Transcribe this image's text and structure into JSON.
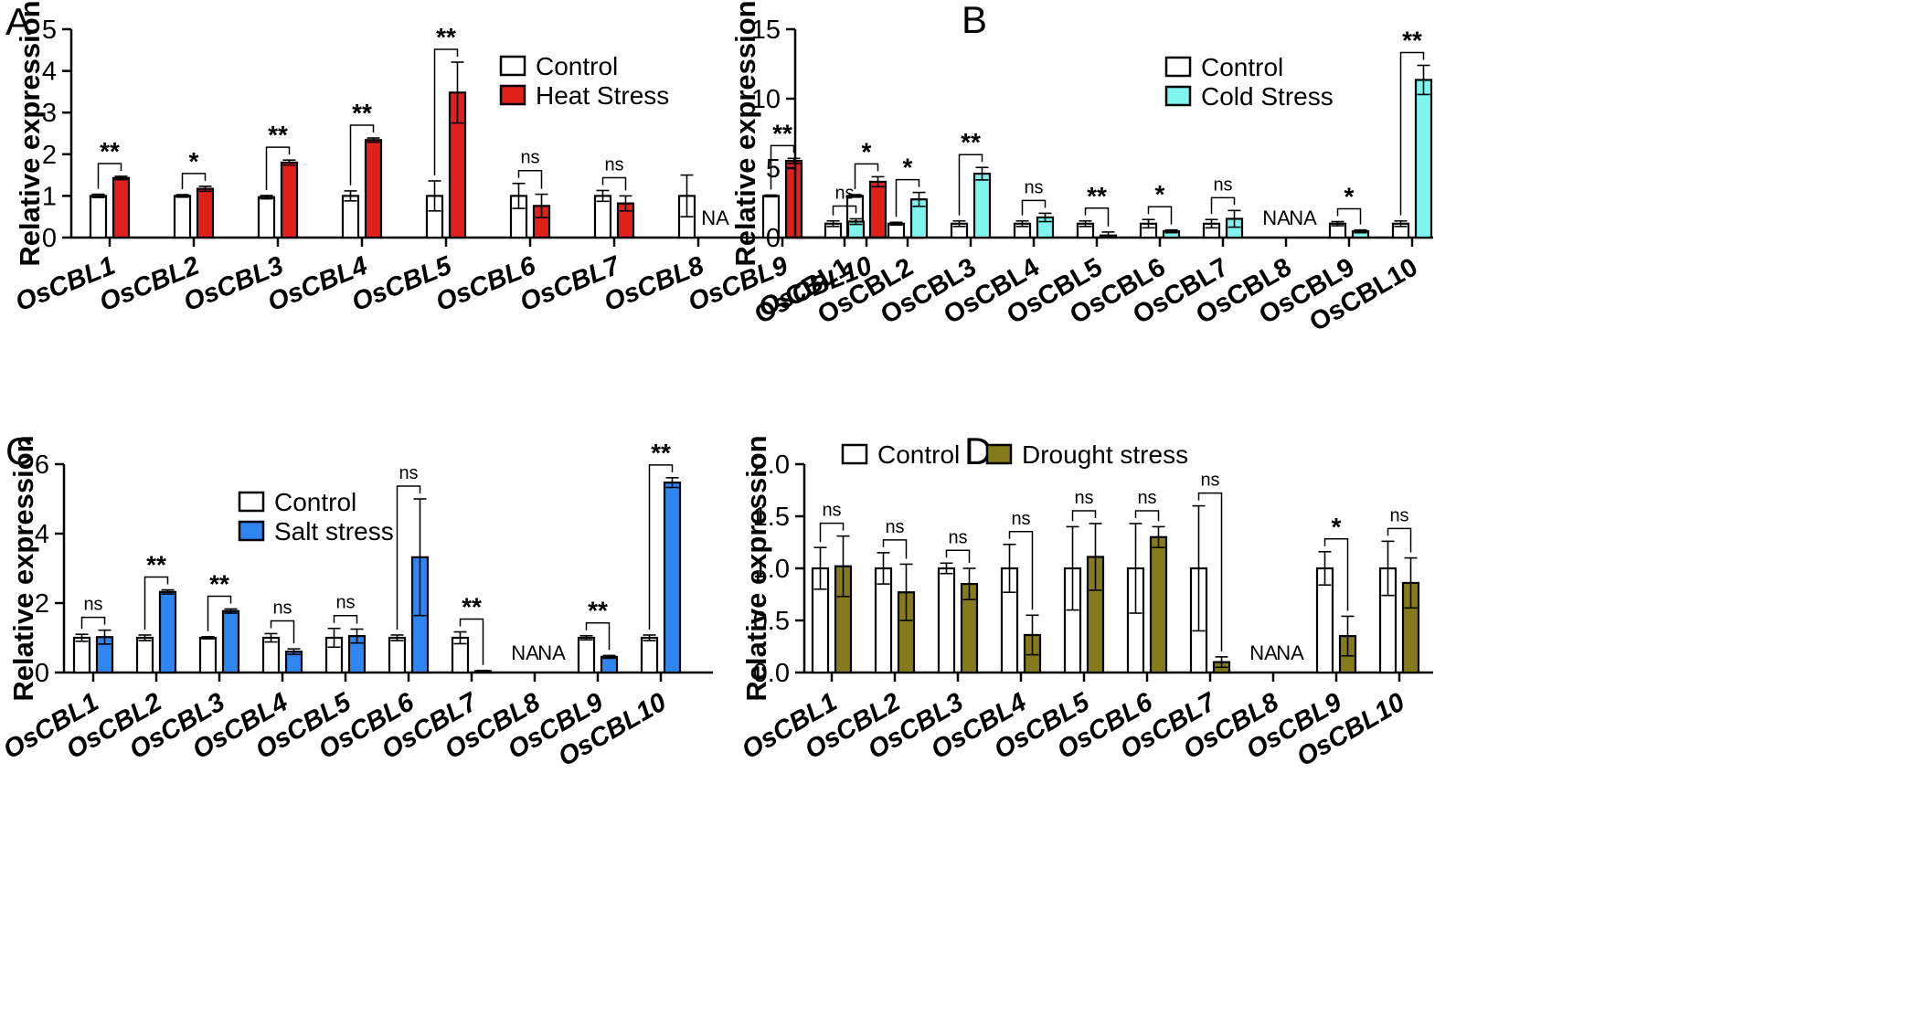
{
  "chart_data": [
    {
      "type": "bar",
      "panel": "A",
      "ylabel": "Relative expression",
      "ylim": [
        0,
        5
      ],
      "yticks": [
        0,
        1,
        2,
        3,
        4,
        5
      ],
      "italic_labels": true,
      "categories": [
        "OsCBL1",
        "OsCBL2",
        "OsCBL3",
        "OsCBL4",
        "OsCBL5",
        "OsCBL6",
        "OsCBL7",
        "OsCBL8",
        "OsCBL9",
        "OsCBL10"
      ],
      "series": [
        {
          "name": "Control",
          "color": "#ffffff",
          "values": [
            1,
            1,
            0.97,
            1,
            1,
            1,
            1,
            1,
            1,
            1
          ],
          "errors": [
            0.04,
            0.03,
            0.04,
            0.12,
            0.36,
            0.3,
            0.13,
            0.5,
            0.02,
            0.03
          ]
        },
        {
          "name": "Heat Stress",
          "color": "#e0201b",
          "values": [
            1.43,
            1.17,
            1.8,
            2.34,
            3.48,
            0.76,
            0.82,
            null,
            1.84,
            1.34
          ],
          "errors": [
            0.04,
            0.06,
            0.06,
            0.05,
            0.73,
            0.28,
            0.18,
            null,
            0.06,
            0.12
          ]
        }
      ],
      "significance": [
        "**",
        "*",
        "**",
        "**",
        "**",
        "ns",
        "ns",
        null,
        "**",
        "*"
      ],
      "na_labels": [
        "NA"
      ],
      "legend": {
        "items": [
          "Control",
          "Heat Stress"
        ]
      }
    },
    {
      "type": "bar",
      "panel": "B",
      "ylabel": "Relative expression",
      "ylim": [
        0,
        15
      ],
      "yticks": [
        0,
        5,
        10,
        15
      ],
      "italic_labels": false,
      "categories": [
        "OsCBL1",
        "OsCBL2",
        "OsCBL3",
        "OsCBL4",
        "OsCBL5",
        "OsCBL6",
        "OsCBL7",
        "OsCBL8",
        "OsCBL9",
        "OsCBL10"
      ],
      "series": [
        {
          "name": "Control",
          "color": "#ffffff",
          "values": [
            1,
            1,
            1,
            1,
            1,
            1,
            1,
            null,
            1,
            1
          ],
          "errors": [
            0.2,
            0.1,
            0.2,
            0.2,
            0.2,
            0.3,
            0.3,
            null,
            0.15,
            0.2
          ]
        },
        {
          "name": "Cold Stress",
          "color": "#7ff5f0",
          "values": [
            1.15,
            2.75,
            4.6,
            1.45,
            0.15,
            0.45,
            1.35,
            null,
            0.45,
            11.35
          ],
          "errors": [
            0.2,
            0.5,
            0.45,
            0.3,
            0.25,
            0.1,
            0.6,
            null,
            0.1,
            1.05
          ]
        }
      ],
      "significance": [
        "ns",
        "*",
        "**",
        "ns",
        "**",
        "*",
        "ns",
        null,
        "*",
        "**"
      ],
      "na_labels": [
        "NA",
        "NA"
      ],
      "legend": {
        "items": [
          "Control",
          "Cold Stress"
        ]
      }
    },
    {
      "type": "bar",
      "panel": "C",
      "ylabel": "Relative expression",
      "ylim": [
        0,
        6
      ],
      "yticks": [
        0,
        2,
        4,
        6
      ],
      "italic_labels": true,
      "categories": [
        "OsCBL1",
        "OsCBL2",
        "OsCBL3",
        "OsCBL4",
        "OsCBL5",
        "OsCBL6",
        "OsCBL7",
        "OsCBL8",
        "OsCBL9",
        "OsCBL10"
      ],
      "series": [
        {
          "name": "Control",
          "color": "#ffffff",
          "values": [
            1,
            1,
            1,
            1,
            1,
            1,
            1,
            null,
            1,
            1
          ],
          "errors": [
            0.1,
            0.08,
            0.03,
            0.12,
            0.27,
            0.08,
            0.17,
            null,
            0.06,
            0.08
          ]
        },
        {
          "name": "Salt stress",
          "color": "#2f86f0",
          "values": [
            1.02,
            2.32,
            1.77,
            0.6,
            1.05,
            3.32,
            0.04,
            null,
            0.45,
            5.47
          ],
          "errors": [
            0.2,
            0.06,
            0.06,
            0.08,
            0.2,
            1.68,
            0.02,
            null,
            0.04,
            0.14
          ]
        }
      ],
      "significance": [
        "ns",
        "**",
        "**",
        "ns",
        "ns",
        "ns",
        "**",
        null,
        "**",
        "**"
      ],
      "na_labels": [
        "NA",
        "NA"
      ],
      "legend": {
        "items": [
          "Control",
          "Salt stress"
        ]
      }
    },
    {
      "type": "bar",
      "panel": "D",
      "ylabel": "Relative expression",
      "ylim": [
        0,
        2
      ],
      "yticks": [
        "0.0",
        "0.5",
        "1.0",
        "1.5",
        "2.0"
      ],
      "italic_labels": true,
      "categories": [
        "OsCBL1",
        "OsCBL2",
        "OsCBL3",
        "OsCBL4",
        "OsCBL5",
        "OsCBL6",
        "OsCBL7",
        "OsCBL8",
        "OsCBL9",
        "OsCBL10"
      ],
      "series": [
        {
          "name": "Control",
          "color": "#ffffff",
          "values": [
            1,
            1,
            1,
            1,
            1,
            1,
            1,
            null,
            1,
            1
          ],
          "errors": [
            0.2,
            0.15,
            0.05,
            0.23,
            0.4,
            0.43,
            0.6,
            null,
            0.16,
            0.26
          ]
        },
        {
          "name": "Drought stress",
          "color": "#857a1c",
          "values": [
            1.02,
            0.77,
            0.85,
            0.36,
            1.11,
            1.3,
            0.1,
            null,
            0.35,
            0.86
          ],
          "errors": [
            0.29,
            0.27,
            0.15,
            0.19,
            0.32,
            0.1,
            0.05,
            null,
            0.19,
            0.24
          ]
        }
      ],
      "significance": [
        "ns",
        "ns",
        "ns",
        "ns",
        "ns",
        "ns",
        "ns",
        null,
        "*",
        "ns"
      ],
      "na_labels": [
        "NA",
        "NA"
      ],
      "legend": {
        "items": [
          "Control",
          "Drought stress"
        ]
      }
    }
  ]
}
